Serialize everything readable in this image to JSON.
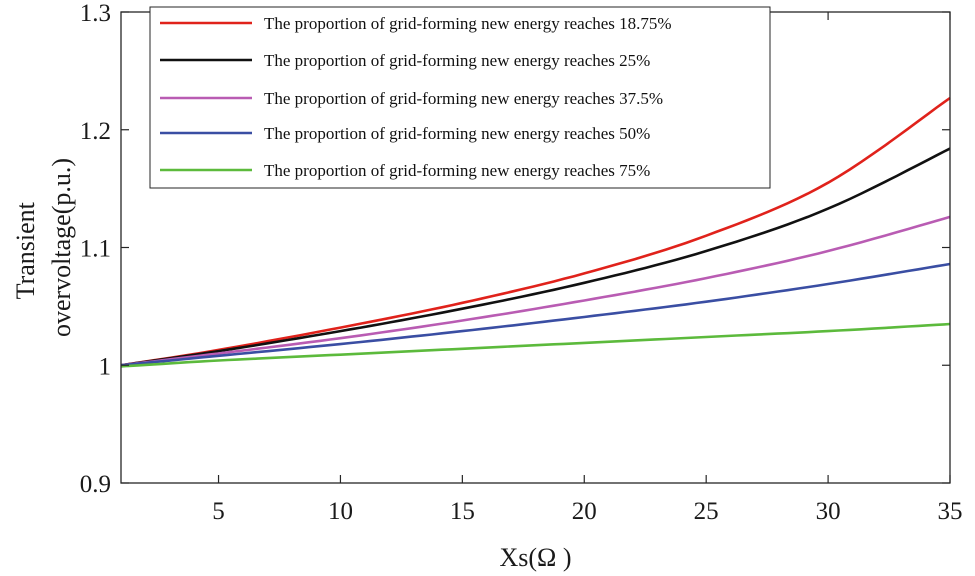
{
  "chart_data": {
    "type": "line",
    "xlabel": "Xs(Ω )",
    "ylabel_lines": [
      "Transient",
      "overvoltage(p.u.)"
    ],
    "xlim": [
      1,
      35
    ],
    "ylim": [
      0.9,
      1.3
    ],
    "xticks": [
      5,
      10,
      15,
      20,
      25,
      30,
      35
    ],
    "yticks": [
      0.9,
      1,
      1.1,
      1.2,
      1.3
    ],
    "ytick_labels": [
      "0.9",
      "1",
      "1.1",
      "1.2",
      "1.3"
    ],
    "grid": false,
    "legend_position": "top-left",
    "x": [
      1,
      5,
      10,
      15,
      20,
      25,
      30,
      35
    ],
    "series": [
      {
        "name": "The proportion of grid-forming new energy reaches 18.75%",
        "color": "#e0221b",
        "values": [
          1.0,
          1.013,
          1.032,
          1.053,
          1.078,
          1.11,
          1.155,
          1.227
        ]
      },
      {
        "name": "The proportion of grid-forming new energy reaches 25%",
        "color": "#111111",
        "values": [
          1.0,
          1.012,
          1.029,
          1.048,
          1.07,
          1.097,
          1.133,
          1.184
        ]
      },
      {
        "name": "The proportion of grid-forming new energy reaches 37.5%",
        "color": "#b95cb3",
        "values": [
          1.0,
          1.01,
          1.023,
          1.038,
          1.055,
          1.074,
          1.097,
          1.126
        ]
      },
      {
        "name": "The proportion of grid-forming new energy reaches 50%",
        "color": "#3a4ea3",
        "values": [
          1.0,
          1.008,
          1.018,
          1.029,
          1.041,
          1.054,
          1.069,
          1.086
        ]
      },
      {
        "name": "The proportion of grid-forming new energy reaches 75%",
        "color": "#5cba3c",
        "values": [
          0.999,
          1.004,
          1.009,
          1.014,
          1.019,
          1.024,
          1.029,
          1.035
        ]
      }
    ]
  }
}
